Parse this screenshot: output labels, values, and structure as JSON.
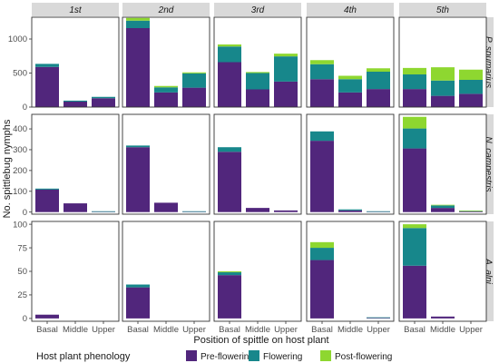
{
  "chart_data": {
    "type": "bar",
    "stacked": true,
    "xlabel": "Position of spittle on host plant",
    "ylabel": "No. spittlebug nymphs",
    "categories": [
      "Basal",
      "Middle",
      "Upper"
    ],
    "columns": [
      "1st",
      "2nd",
      "3rd",
      "4th",
      "5th"
    ],
    "rows": [
      {
        "label": "P. spumarius",
        "ylim": [
          0,
          1320
        ],
        "yticks": [
          0,
          500,
          1000
        ]
      },
      {
        "label": "N. campestris",
        "ylim": [
          -10,
          470
        ],
        "yticks": [
          0,
          100,
          200,
          300,
          400
        ]
      },
      {
        "label": "A. alni",
        "ylim": [
          -3,
          103
        ],
        "yticks": [
          0,
          25,
          50,
          75,
          100
        ]
      }
    ],
    "legend": {
      "title": "Host plant phenology",
      "position": "bottom",
      "entries": [
        "Pre-flowering",
        "Flowering",
        "Post-flowering"
      ]
    },
    "colors": {
      "Pre-flowering": "#51267c",
      "Flowering": "#17878b",
      "Post-flowering": "#8ed730",
      "panel_bg": "#ffffff",
      "panel_border": "#333333",
      "strip_bg": "#d9d9d9"
    },
    "grid": false,
    "values": {
      "P. spumarius": {
        "1st": [
          [
            590,
            45,
            0
          ],
          [
            80,
            15,
            0
          ],
          [
            130,
            20,
            0
          ]
        ],
        "2nd": [
          [
            1160,
            110,
            40
          ],
          [
            215,
            75,
            20
          ],
          [
            285,
            210,
            15
          ]
        ],
        "3rd": [
          [
            660,
            230,
            30
          ],
          [
            260,
            240,
            15
          ],
          [
            375,
            370,
            40
          ]
        ],
        "4th": [
          [
            410,
            220,
            60
          ],
          [
            215,
            195,
            50
          ],
          [
            265,
            255,
            50
          ]
        ],
        "5th": [
          [
            265,
            215,
            95
          ],
          [
            165,
            225,
            195
          ],
          [
            195,
            205,
            150
          ]
        ]
      },
      "N. campestris": {
        "1st": [
          [
            108,
            5,
            0
          ],
          [
            42,
            0,
            0
          ],
          [
            1,
            1,
            0
          ]
        ],
        "2nd": [
          [
            312,
            8,
            0
          ],
          [
            45,
            0,
            0
          ],
          [
            1,
            1,
            0
          ]
        ],
        "3rd": [
          [
            290,
            22,
            0
          ],
          [
            20,
            0,
            0
          ],
          [
            8,
            0,
            0
          ]
        ],
        "4th": [
          [
            343,
            45,
            0
          ],
          [
            8,
            5,
            0
          ],
          [
            1,
            1,
            0
          ]
        ],
        "5th": [
          [
            306,
            96,
            56
          ],
          [
            20,
            12,
            3
          ],
          [
            3,
            1,
            3
          ]
        ]
      },
      "A. alni": {
        "1st": [
          [
            4,
            0,
            0
          ],
          [
            0,
            0,
            0
          ],
          [
            0,
            0,
            0
          ]
        ],
        "2nd": [
          [
            33,
            3,
            0
          ],
          [
            0,
            0,
            0
          ],
          [
            0,
            0,
            0
          ]
        ],
        "3rd": [
          [
            46,
            3,
            1
          ],
          [
            0,
            0,
            0
          ],
          [
            0,
            0,
            0
          ]
        ],
        "4th": [
          [
            62,
            13,
            6
          ],
          [
            0,
            0,
            0
          ],
          [
            0.5,
            0.5,
            0
          ]
        ],
        "5th": [
          [
            56,
            40,
            4
          ],
          [
            2,
            0,
            0
          ],
          [
            0,
            0,
            0
          ]
        ]
      }
    }
  }
}
